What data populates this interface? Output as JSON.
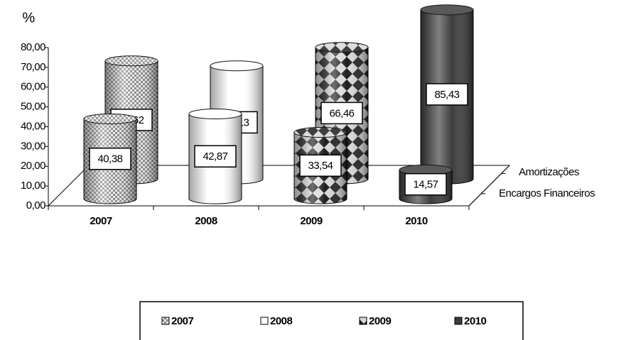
{
  "chart_data": {
    "type": "bar3d-cylinder",
    "y_unit_label": "%",
    "categories": [
      "2007",
      "2008",
      "2009",
      "2010"
    ],
    "colors": [
      "#8a8a8a",
      "#ffffff",
      "#1e1e1e",
      "#3c3c3c"
    ],
    "series": [
      {
        "name": "Encargos Financeiros",
        "values": [
          40.38,
          42.87,
          33.54,
          14.57
        ],
        "value_labels": [
          "40,38",
          "42,87",
          "33,54",
          "14,57"
        ]
      },
      {
        "name": "Amortizações",
        "values": [
          59.62,
          57.13,
          66.46,
          85.43
        ],
        "value_labels": [
          "59,62",
          "57,13",
          "66,46",
          "85,43"
        ]
      }
    ],
    "ylim": [
      0,
      80
    ],
    "yticks": [
      {
        "value": 0,
        "label": "0,00"
      },
      {
        "value": 10,
        "label": "10,00"
      },
      {
        "value": 20,
        "label": "20,00"
      },
      {
        "value": 30,
        "label": "30,00"
      },
      {
        "value": 40,
        "label": "40,00"
      },
      {
        "value": 50,
        "label": "50,00"
      },
      {
        "value": 60,
        "label": "60,00"
      },
      {
        "value": 70,
        "label": "70,00"
      },
      {
        "value": 80,
        "label": "80,00"
      }
    ],
    "legend": true
  }
}
